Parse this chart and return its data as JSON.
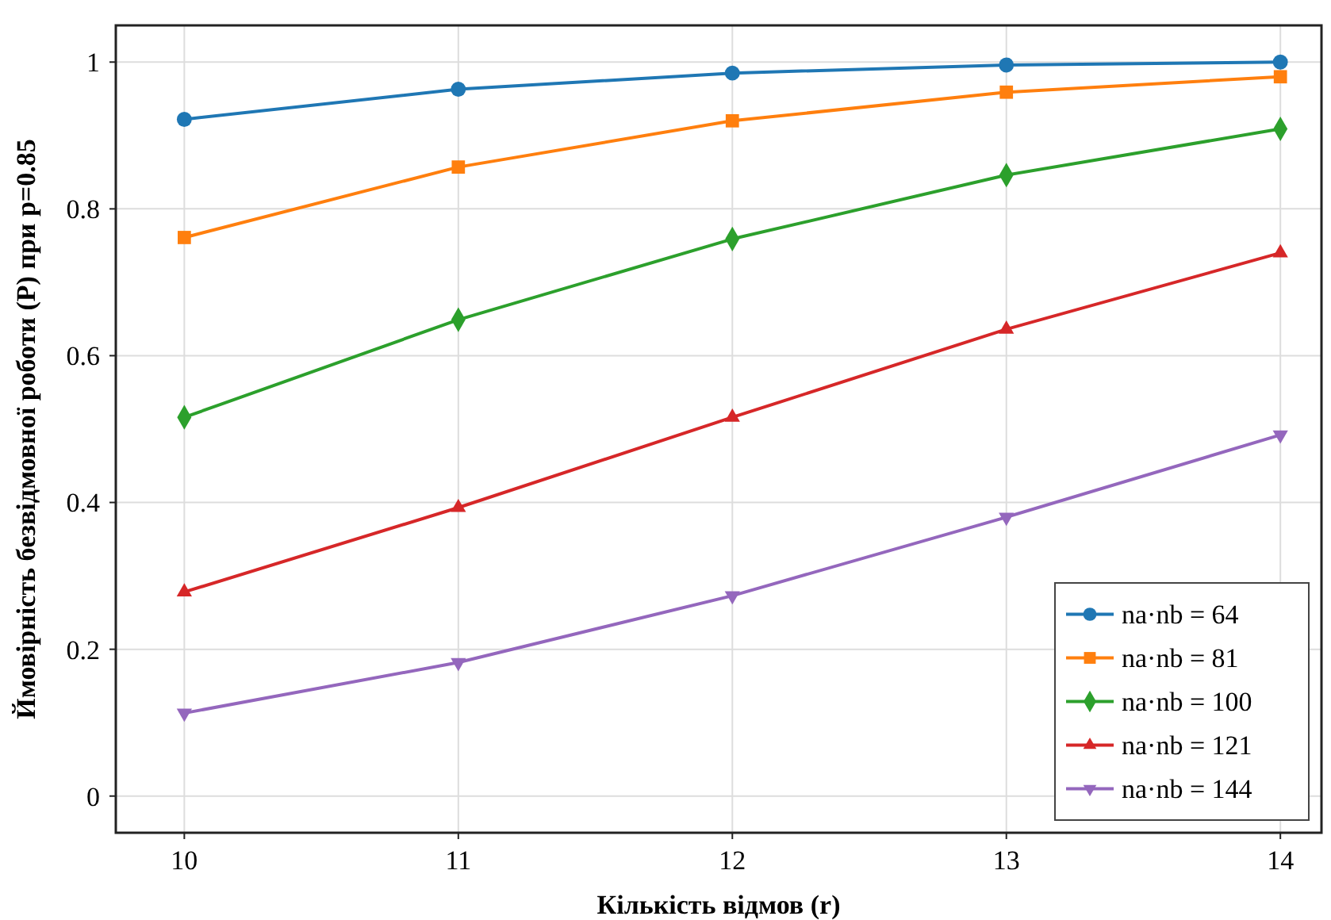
{
  "chart_data": {
    "type": "line",
    "xlabel": "Кількість відмов (r)",
    "ylabel": "Ймовірність безвідмовної роботи (P) при p=0.85",
    "x": [
      10,
      11,
      12,
      13,
      14
    ],
    "xlim": [
      9.75,
      14.15
    ],
    "xticks": [
      10,
      11,
      12,
      13,
      14
    ],
    "ylim": [
      -0.05,
      1.05
    ],
    "yticks": [
      0,
      0.2,
      0.4,
      0.6,
      0.8,
      1
    ],
    "grid": true,
    "legend": "bottom right",
    "line_style": "solid",
    "series": [
      {
        "name": "na·nb = 64",
        "color": "#1f77b4",
        "marker": "circle",
        "values": [
          0.922,
          0.963,
          0.985,
          0.996,
          1.0
        ]
      },
      {
        "name": "na·nb = 81",
        "color": "#ff7f0e",
        "marker": "square",
        "values": [
          0.761,
          0.857,
          0.92,
          0.959,
          0.98
        ]
      },
      {
        "name": "na·nb = 100",
        "color": "#2ca02c",
        "marker": "diamond",
        "values": [
          0.516,
          0.649,
          0.759,
          0.846,
          0.909
        ]
      },
      {
        "name": "na·nb = 121",
        "color": "#d62728",
        "marker": "triangle",
        "values": [
          0.278,
          0.393,
          0.516,
          0.636,
          0.74
        ]
      },
      {
        "name": "na·nb = 144",
        "color": "#9467bd",
        "marker": "triangle-down",
        "values": [
          0.113,
          0.182,
          0.273,
          0.38,
          0.492
        ]
      }
    ]
  }
}
